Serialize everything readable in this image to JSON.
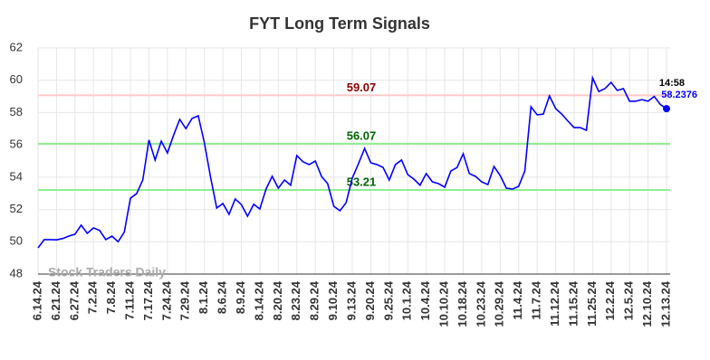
{
  "chart_data": {
    "type": "line",
    "title": "FYT Long Term Signals",
    "categories": [
      "6.14.24",
      null,
      null,
      "6.21.24",
      null,
      null,
      "6.27.24",
      null,
      null,
      "7.2.24",
      null,
      null,
      "7.8.24",
      null,
      null,
      "7.11.24",
      null,
      null,
      "7.17.24",
      null,
      null,
      "7.24.24",
      null,
      null,
      "7.29.24",
      null,
      null,
      "8.1.24",
      null,
      null,
      "8.6.24",
      null,
      null,
      "8.9.24",
      null,
      null,
      "8.14.24",
      null,
      null,
      "8.20.24",
      null,
      null,
      "8.23.24",
      null,
      null,
      "8.29.24",
      null,
      null,
      "9.10.24",
      null,
      null,
      "9.13.24",
      null,
      null,
      "9.20.24",
      null,
      null,
      "9.25.24",
      null,
      null,
      "10.1.24",
      null,
      null,
      "10.4.24",
      null,
      null,
      "10.10.24",
      null,
      null,
      "10.18.24",
      null,
      null,
      "10.23.24",
      null,
      null,
      "10.29.24",
      null,
      null,
      "11.4.24",
      null,
      null,
      "11.7.24",
      null,
      null,
      "11.12.24",
      null,
      null,
      "11.15.24",
      null,
      null,
      "11.25.24",
      null,
      null,
      "12.2.24",
      null,
      null,
      "12.5.24",
      null,
      null,
      "12.10.24",
      null,
      null,
      "12.13.24"
    ],
    "values": [
      49.62,
      50.13,
      50.13,
      50.12,
      50.2,
      50.35,
      50.47,
      51.03,
      50.52,
      50.86,
      50.7,
      50.13,
      50.35,
      50.0,
      50.6,
      52.7,
      52.98,
      53.82,
      56.3,
      55.06,
      56.23,
      55.5,
      56.6,
      57.58,
      57.0,
      57.64,
      57.8,
      56.12,
      54.0,
      52.09,
      52.37,
      51.7,
      52.65,
      52.3,
      51.58,
      52.32,
      52.03,
      53.26,
      54.05,
      53.32,
      53.82,
      53.5,
      55.34,
      54.95,
      54.78,
      55.0,
      54.05,
      53.6,
      52.2,
      51.92,
      52.42,
      53.94,
      54.83,
      55.78,
      54.89,
      54.78,
      54.6,
      53.82,
      54.78,
      55.06,
      54.16,
      53.88,
      53.5,
      54.22,
      53.71,
      53.6,
      53.38,
      54.38,
      54.6,
      55.45,
      54.22,
      54.05,
      53.71,
      53.54,
      54.66,
      54.1,
      53.32,
      53.26,
      53.43,
      54.38,
      58.36,
      57.86,
      57.9,
      59.03,
      58.25,
      57.9,
      57.47,
      57.07,
      57.07,
      56.9,
      60.15,
      59.3,
      59.48,
      59.87,
      59.37,
      59.48,
      58.7,
      58.7,
      58.8,
      58.7,
      59.0,
      58.5,
      58.2376
    ],
    "color": "#0000ff",
    "ylim": [
      48,
      62
    ],
    "yticks": [
      48,
      50,
      52,
      54,
      56,
      58,
      60,
      62
    ],
    "grid": true,
    "hlines": [
      {
        "value": 59.07,
        "color": "#ffc8c8",
        "label_color": "#8b0000"
      },
      {
        "value": 56.07,
        "color": "#90ee90",
        "label_color": "#006400"
      },
      {
        "value": 53.21,
        "color": "#90ee90",
        "label_color": "#006400"
      }
    ],
    "last_time": "14:58",
    "watermark": "Stock Traders Daily"
  }
}
